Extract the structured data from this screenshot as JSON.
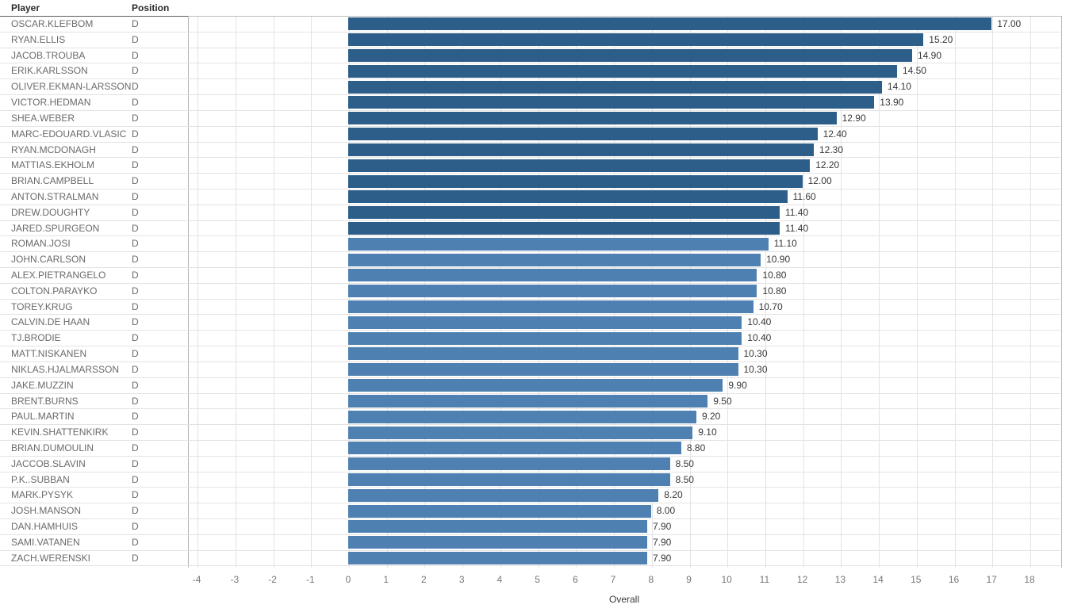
{
  "table": {
    "player_header": "Player",
    "position_header": "Position"
  },
  "chart_data": {
    "type": "bar",
    "orientation": "horizontal",
    "title": "",
    "xlabel": "Overall",
    "ylabel": "",
    "xlim": [
      -4.2,
      18.8
    ],
    "x_ticks": [
      -4,
      -3,
      -2,
      -1,
      0,
      1,
      2,
      3,
      4,
      5,
      6,
      7,
      8,
      9,
      10,
      11,
      12,
      13,
      14,
      15,
      16,
      17,
      18
    ],
    "grid": "vertical",
    "legend": "none",
    "categories": [
      "OSCAR.KLEFBOM",
      "RYAN.ELLIS",
      "JACOB.TROUBA",
      "ERIK.KARLSSON",
      "OLIVER.EKMAN-LARSSON",
      "VICTOR.HEDMAN",
      "SHEA.WEBER",
      "MARC-EDOUARD.VLASIC",
      "RYAN.MCDONAGH",
      "MATTIAS.EKHOLM",
      "BRIAN.CAMPBELL",
      "ANTON.STRALMAN",
      "DREW.DOUGHTY",
      "JARED.SPURGEON",
      "ROMAN.JOSI",
      "JOHN.CARLSON",
      "ALEX.PIETRANGELO",
      "COLTON.PARAYKO",
      "TOREY.KRUG",
      "CALVIN.DE HAAN",
      "TJ.BRODIE",
      "MATT.NISKANEN",
      "NIKLAS.HJALMARSSON",
      "JAKE.MUZZIN",
      "BRENT.BURNS",
      "PAUL.MARTIN",
      "KEVIN.SHATTENKIRK",
      "BRIAN.DUMOULIN",
      "JACCOB.SLAVIN",
      "P.K..SUBBAN",
      "MARK.PYSYK",
      "JOSH.MANSON",
      "DAN.HAMHUIS",
      "SAMI.VATANEN",
      "ZACH.WERENSKI"
    ],
    "positions": [
      "D",
      "D",
      "D",
      "D",
      "D",
      "D",
      "D",
      "D",
      "D",
      "D",
      "D",
      "D",
      "D",
      "D",
      "D",
      "D",
      "D",
      "D",
      "D",
      "D",
      "D",
      "D",
      "D",
      "D",
      "D",
      "D",
      "D",
      "D",
      "D",
      "D",
      "D",
      "D",
      "D",
      "D",
      "D"
    ],
    "values": [
      17.0,
      15.2,
      14.9,
      14.5,
      14.1,
      13.9,
      12.9,
      12.4,
      12.3,
      12.2,
      12.0,
      11.6,
      11.4,
      11.4,
      11.1,
      10.9,
      10.8,
      10.8,
      10.7,
      10.4,
      10.4,
      10.3,
      10.3,
      9.9,
      9.5,
      9.2,
      9.1,
      8.8,
      8.5,
      8.5,
      8.2,
      8.0,
      7.9,
      7.9,
      7.9
    ],
    "value_label_format": "2-decimals",
    "bar_colors": {
      "dark": "#2d5e8a",
      "light": "#4e81b2",
      "dark_min_value": 11.4
    }
  }
}
